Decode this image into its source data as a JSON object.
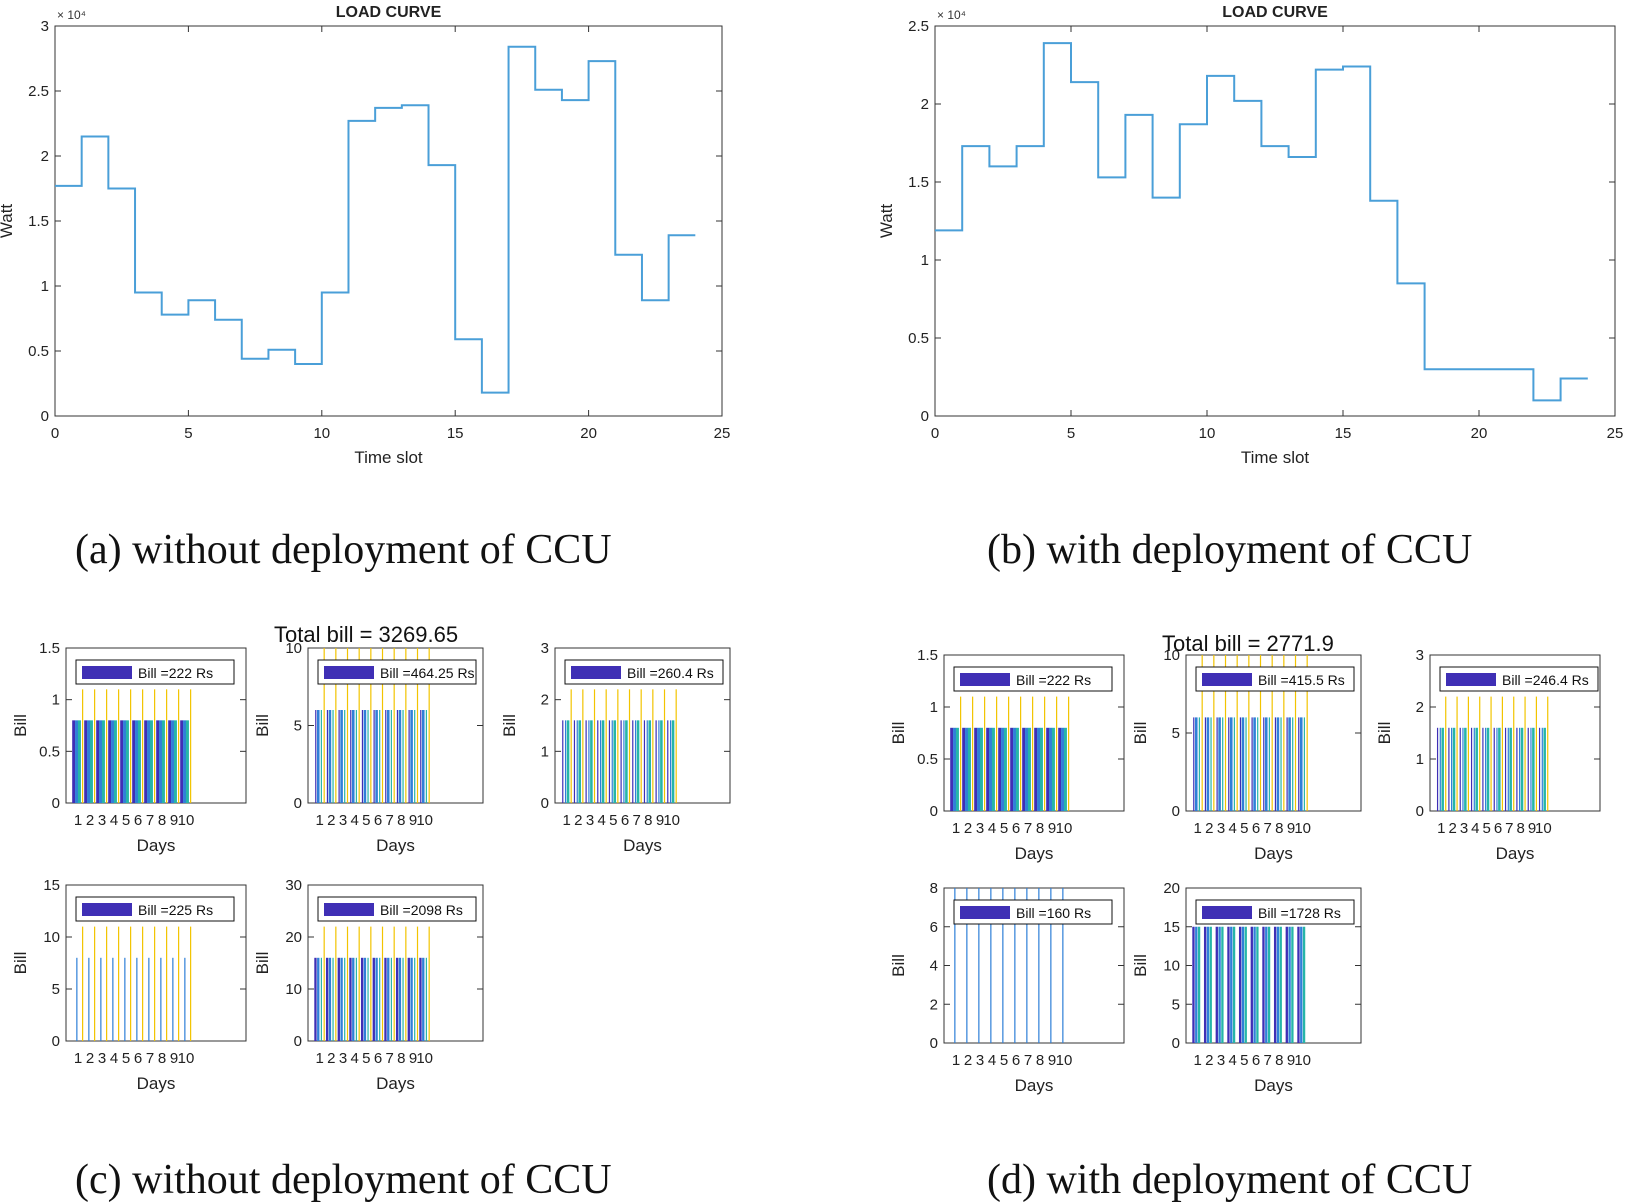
{
  "colors": {
    "line": "#4a9fd8",
    "bar_a": "#3f2fb5",
    "bar_b": "#2f7fd8",
    "bar_c": "#26b5a8",
    "bar_d": "#f2c400",
    "axis": "#333333",
    "legend_patch": "#3f2fb5"
  },
  "captions": {
    "a": "(a) without deployment of CCU",
    "b": "(b) with deployment of CCU",
    "c": "(c) without deployment of CCU",
    "d": "(d) with deployment of CCU"
  },
  "totals": {
    "c": "Total bill = 3269.65",
    "d": "Total bill = 2771.9"
  },
  "chart_data": [
    {
      "id": "a",
      "type": "line",
      "step": true,
      "title": "LOAD CURVE",
      "xlabel": "Time slot",
      "ylabel": "Watt",
      "y_exponent": "× 10⁴",
      "xlim": [
        0,
        25
      ],
      "ylim": [
        0,
        3
      ],
      "xticks": [
        "0",
        "5",
        "10",
        "15",
        "20",
        "25"
      ],
      "yticks": [
        "0",
        "0.5",
        "1",
        "1.5",
        "2",
        "2.5",
        "3"
      ],
      "x": [
        0,
        1,
        2,
        3,
        4,
        5,
        6,
        7,
        8,
        9,
        10,
        11,
        12,
        13,
        14,
        15,
        16,
        17,
        18,
        19,
        20,
        21,
        22,
        23,
        24
      ],
      "y": [
        1.77,
        2.15,
        1.75,
        0.95,
        0.78,
        0.89,
        0.74,
        0.44,
        0.51,
        0.4,
        0.95,
        2.27,
        2.37,
        2.39,
        1.93,
        0.59,
        0.18,
        2.84,
        2.51,
        2.43,
        2.73,
        1.24,
        0.89,
        1.39,
        1.39
      ]
    },
    {
      "id": "b",
      "type": "line",
      "step": true,
      "title": "LOAD CURVE",
      "xlabel": "Time slot",
      "ylabel": "Watt",
      "y_exponent": "× 10⁴",
      "xlim": [
        0,
        25
      ],
      "ylim": [
        0,
        2.5
      ],
      "xticks": [
        "0",
        "5",
        "10",
        "15",
        "20",
        "25"
      ],
      "yticks": [
        "0",
        "0.5",
        "1",
        "1.5",
        "2",
        "2.5"
      ],
      "x": [
        0,
        1,
        2,
        3,
        4,
        5,
        6,
        7,
        8,
        9,
        10,
        11,
        12,
        13,
        14,
        15,
        16,
        17,
        18,
        19,
        20,
        21,
        22,
        23,
        24
      ],
      "y": [
        1.19,
        1.73,
        1.6,
        1.73,
        2.39,
        2.14,
        1.53,
        1.93,
        1.4,
        1.87,
        2.18,
        2.02,
        1.73,
        1.66,
        2.22,
        2.24,
        1.38,
        0.85,
        0.3,
        0.3,
        0.3,
        0.3,
        0.1,
        0.24,
        0.24
      ]
    },
    {
      "id": "c1",
      "type": "bar",
      "xlabel": "Days",
      "ylabel": "Bill",
      "legend": "Bill =222 Rs",
      "xlim": [
        0,
        15
      ],
      "ylim": [
        0,
        1.5
      ],
      "yticks": [
        "0",
        "0.5",
        "1",
        "1.5"
      ],
      "categories": [
        "1",
        "2",
        "3",
        "4",
        "5",
        "6",
        "7",
        "8",
        "9",
        "10"
      ],
      "pattern": [
        0.8,
        0.8,
        0.8,
        1.1
      ],
      "widths": [
        0.25,
        0.25,
        0.25,
        0.05
      ]
    },
    {
      "id": "c2",
      "type": "bar",
      "xlabel": "Days",
      "ylabel": "Bill",
      "legend": "Bill =464.25 Rs",
      "xlim": [
        0,
        15
      ],
      "ylim": [
        0,
        10
      ],
      "yticks": [
        "0",
        "5",
        "10"
      ],
      "categories": [
        "1",
        "2",
        "3",
        "4",
        "5",
        "6",
        "7",
        "8",
        "9",
        "10"
      ],
      "pattern": [
        6.0,
        6.0,
        6.0,
        10.5
      ],
      "widths": [
        0.05,
        0.22,
        0.05,
        0.05
      ]
    },
    {
      "id": "c3",
      "type": "bar",
      "xlabel": "Days",
      "ylabel": "Bill",
      "legend": "Bill =260.4 Rs",
      "xlim": [
        0,
        15
      ],
      "ylim": [
        0,
        3
      ],
      "yticks": [
        "0",
        "1",
        "2",
        "3"
      ],
      "categories": [
        "1",
        "2",
        "3",
        "4",
        "5",
        "6",
        "7",
        "8",
        "9",
        "10"
      ],
      "pattern": [
        1.6,
        1.6,
        1.6,
        2.2
      ],
      "widths": [
        0.05,
        0.05,
        0.22,
        0.05
      ]
    },
    {
      "id": "c4",
      "type": "bar",
      "xlabel": "Days",
      "ylabel": "Bill",
      "legend": "Bill =225 Rs",
      "xlim": [
        0,
        15
      ],
      "ylim": [
        0,
        15
      ],
      "yticks": [
        "0",
        "5",
        "10",
        "15"
      ],
      "categories": [
        "1",
        "2",
        "3",
        "4",
        "5",
        "6",
        "7",
        "8",
        "9",
        "10"
      ],
      "pattern": [
        0,
        8.0,
        0,
        11.0
      ],
      "widths": [
        0.05,
        0.05,
        0.05,
        0.05
      ]
    },
    {
      "id": "c5",
      "type": "bar",
      "xlabel": "Days",
      "ylabel": "Bill",
      "legend": "Bill =2098 Rs",
      "xlim": [
        0,
        15
      ],
      "ylim": [
        0,
        30
      ],
      "yticks": [
        "0",
        "10",
        "20",
        "30"
      ],
      "categories": [
        "1",
        "2",
        "3",
        "4",
        "5",
        "6",
        "7",
        "8",
        "9",
        "10"
      ],
      "pattern": [
        16.0,
        16.0,
        16.0,
        22.0
      ],
      "widths": [
        0.2,
        0.2,
        0.05,
        0.05
      ]
    },
    {
      "id": "d1",
      "type": "bar",
      "xlabel": "Days",
      "ylabel": "Bill",
      "legend": "Bill =222 Rs",
      "xlim": [
        0,
        15
      ],
      "ylim": [
        0,
        1.5
      ],
      "yticks": [
        "0",
        "0.5",
        "1",
        "1.5"
      ],
      "categories": [
        "1",
        "2",
        "3",
        "4",
        "5",
        "6",
        "7",
        "8",
        "9",
        "10"
      ],
      "pattern": [
        0.8,
        0.8,
        0.8,
        1.1
      ],
      "widths": [
        0.25,
        0.25,
        0.25,
        0.05
      ]
    },
    {
      "id": "d2",
      "type": "bar",
      "xlabel": "Days",
      "ylabel": "Bill",
      "legend": "Bill =415.5 Rs",
      "xlim": [
        0,
        15
      ],
      "ylim": [
        0,
        10
      ],
      "yticks": [
        "0",
        "5",
        "10"
      ],
      "categories": [
        "1",
        "2",
        "3",
        "4",
        "5",
        "6",
        "7",
        "8",
        "9",
        "10"
      ],
      "pattern": [
        6.0,
        6.0,
        6.0,
        10.5
      ],
      "widths": [
        0.05,
        0.22,
        0.05,
        0.05
      ]
    },
    {
      "id": "d3",
      "type": "bar",
      "xlabel": "Days",
      "ylabel": "Bill",
      "legend": "Bill =246.4 Rs",
      "xlim": [
        0,
        15
      ],
      "ylim": [
        0,
        3
      ],
      "yticks": [
        "0",
        "1",
        "2",
        "3"
      ],
      "categories": [
        "1",
        "2",
        "3",
        "4",
        "5",
        "6",
        "7",
        "8",
        "9",
        "10"
      ],
      "pattern": [
        1.6,
        1.6,
        1.6,
        2.2
      ],
      "widths": [
        0.05,
        0.05,
        0.22,
        0.05
      ]
    },
    {
      "id": "d4",
      "type": "bar",
      "xlabel": "Days",
      "ylabel": "Bill",
      "legend": "Bill =160 Rs",
      "xlim": [
        0,
        15
      ],
      "ylim": [
        0,
        8
      ],
      "yticks": [
        "0",
        "2",
        "4",
        "6",
        "8"
      ],
      "categories": [
        "1",
        "2",
        "3",
        "4",
        "5",
        "6",
        "7",
        "8",
        "9",
        "10"
      ],
      "pattern": [
        0,
        8.0,
        0,
        0
      ],
      "widths": [
        0.05,
        0.05,
        0.05,
        0.05
      ]
    },
    {
      "id": "d5",
      "type": "bar",
      "xlabel": "Days",
      "ylabel": "Bill",
      "legend": "Bill =1728 Rs",
      "xlim": [
        0,
        15
      ],
      "ylim": [
        0,
        20
      ],
      "yticks": [
        "0",
        "5",
        "10",
        "15",
        "20"
      ],
      "categories": [
        "1",
        "2",
        "3",
        "4",
        "5",
        "6",
        "7",
        "8",
        "9",
        "10"
      ],
      "pattern": [
        15.0,
        15.0,
        15.0,
        0
      ],
      "widths": [
        0.2,
        0.2,
        0.2,
        0.05
      ]
    }
  ]
}
